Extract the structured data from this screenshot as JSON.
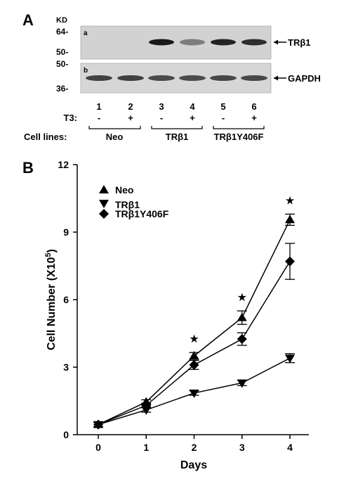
{
  "panel_a": {
    "label": "A",
    "kd_label": "KD",
    "markers_top": [
      "64-",
      "50-"
    ],
    "markers_bottom": [
      "50-",
      "36-"
    ],
    "sub_top": "a",
    "sub_bottom": "b",
    "blot_top_label": "TRβ1",
    "blot_bottom_label": "GAPDH",
    "lanes": [
      "1",
      "2",
      "3",
      "4",
      "5",
      "6"
    ],
    "t3_label": "T3:",
    "t3_values": [
      "-",
      "+",
      "-",
      "+",
      "-",
      "+"
    ],
    "cell_lines_label": "Cell lines:",
    "groups": [
      "Neo",
      "TRβ1",
      "TRβ1Y406F"
    ],
    "band_intensity_top": [
      0,
      0,
      0.95,
      0.45,
      0.9,
      0.85
    ],
    "band_intensity_bottom": [
      0.75,
      0.75,
      0.7,
      0.7,
      0.72,
      0.72
    ]
  },
  "panel_b": {
    "label": "B",
    "star_symbol": "★",
    "star_days": [
      2,
      3,
      4
    ]
  },
  "chart_data": {
    "type": "line",
    "xlabel": "Days",
    "ylabel_prefix": "Cell Number (X10",
    "ylabel_sup": "5",
    "ylabel_suffix": ")",
    "x": [
      0,
      1,
      2,
      3,
      4
    ],
    "xticks": [
      "0",
      "1",
      "2",
      "3",
      "4"
    ],
    "ylim": [
      0,
      12
    ],
    "yticks": [
      "0",
      "3",
      "6",
      "9",
      "12"
    ],
    "legend_position": "top-left",
    "series": [
      {
        "name": "Neo",
        "marker": "triangle-up",
        "values": [
          0.45,
          1.45,
          3.5,
          5.2,
          9.55
        ],
        "errors": [
          0.1,
          0.1,
          0.15,
          0.3,
          0.25
        ]
      },
      {
        "name": "TRβ1",
        "marker": "triangle-down",
        "values": [
          0.45,
          1.1,
          1.85,
          2.3,
          3.4
        ],
        "errors": [
          0.1,
          0.1,
          0.1,
          0.12,
          0.2
        ]
      },
      {
        "name": "TRβ1Y406F",
        "marker": "diamond",
        "values": [
          0.45,
          1.3,
          3.1,
          4.25,
          7.7
        ],
        "errors": [
          0.1,
          0.1,
          0.2,
          0.28,
          0.8
        ]
      }
    ]
  }
}
